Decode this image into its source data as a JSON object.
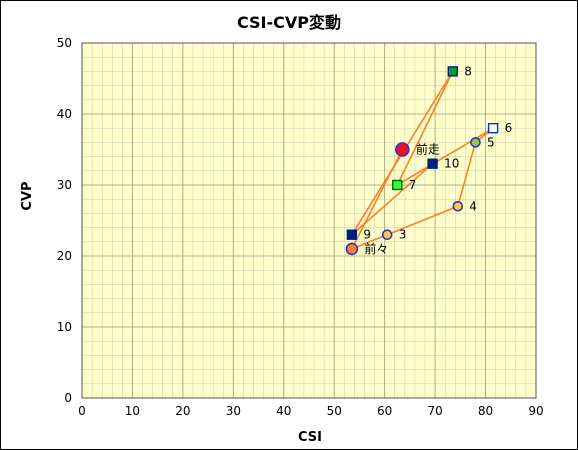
{
  "chart_data": {
    "type": "scatter",
    "title": "CSI-CVP変動",
    "xlabel": "CSI",
    "ylabel": "CVP",
    "xlim": [
      0,
      90
    ],
    "ylim": [
      0,
      50
    ],
    "xticks": [
      "0",
      "10",
      "20",
      "30",
      "40",
      "50",
      "60",
      "70",
      "80",
      "90"
    ],
    "yticks": [
      "0",
      "10",
      "20",
      "30",
      "40",
      "50"
    ],
    "grid": true,
    "colors": {
      "plot_bg": "#FFFFCC",
      "grid": "#C8C8A8",
      "line": "#FF7F27",
      "navy": "#002080"
    },
    "points": [
      {
        "label": "前々",
        "x": 53.5,
        "y": 21,
        "marker": "circle",
        "fill": "#FF7F27",
        "stroke": "#3333CC",
        "size": 11
      },
      {
        "label": "3",
        "x": 60.5,
        "y": 23,
        "marker": "circle",
        "fill": "#FFCC33",
        "stroke": "#3333CC",
        "size": 9
      },
      {
        "label": "4",
        "x": 74.5,
        "y": 27,
        "marker": "circle",
        "fill": "#FFCC33",
        "stroke": "#3333CC",
        "size": 9
      },
      {
        "label": "5",
        "x": 78,
        "y": 36,
        "marker": "circle",
        "fill": "#99CC33",
        "stroke": "#3333CC",
        "size": 9
      },
      {
        "label": "6",
        "x": 81.5,
        "y": 38,
        "marker": "square",
        "fill": "#FFFFFF",
        "stroke": "#0033CC",
        "size": 9
      },
      {
        "label": "7",
        "x": 62.5,
        "y": 30,
        "marker": "square",
        "fill": "#33FF33",
        "stroke": "#006600",
        "size": 9
      },
      {
        "label": "8",
        "x": 73.5,
        "y": 46,
        "marker": "square",
        "fill": "#009933",
        "stroke": "#002080",
        "size": 9
      },
      {
        "label": "9",
        "x": 53.5,
        "y": 23,
        "marker": "square",
        "fill": "#002080",
        "stroke": "#002080",
        "size": 9
      },
      {
        "label": "10",
        "x": 69.5,
        "y": 33,
        "marker": "square",
        "fill": "#002080",
        "stroke": "#002080",
        "size": 9
      },
      {
        "label": "前走",
        "x": 63.5,
        "y": 35,
        "marker": "circle",
        "fill": "#EE1122",
        "stroke": "#3333CC",
        "size": 13
      }
    ]
  }
}
